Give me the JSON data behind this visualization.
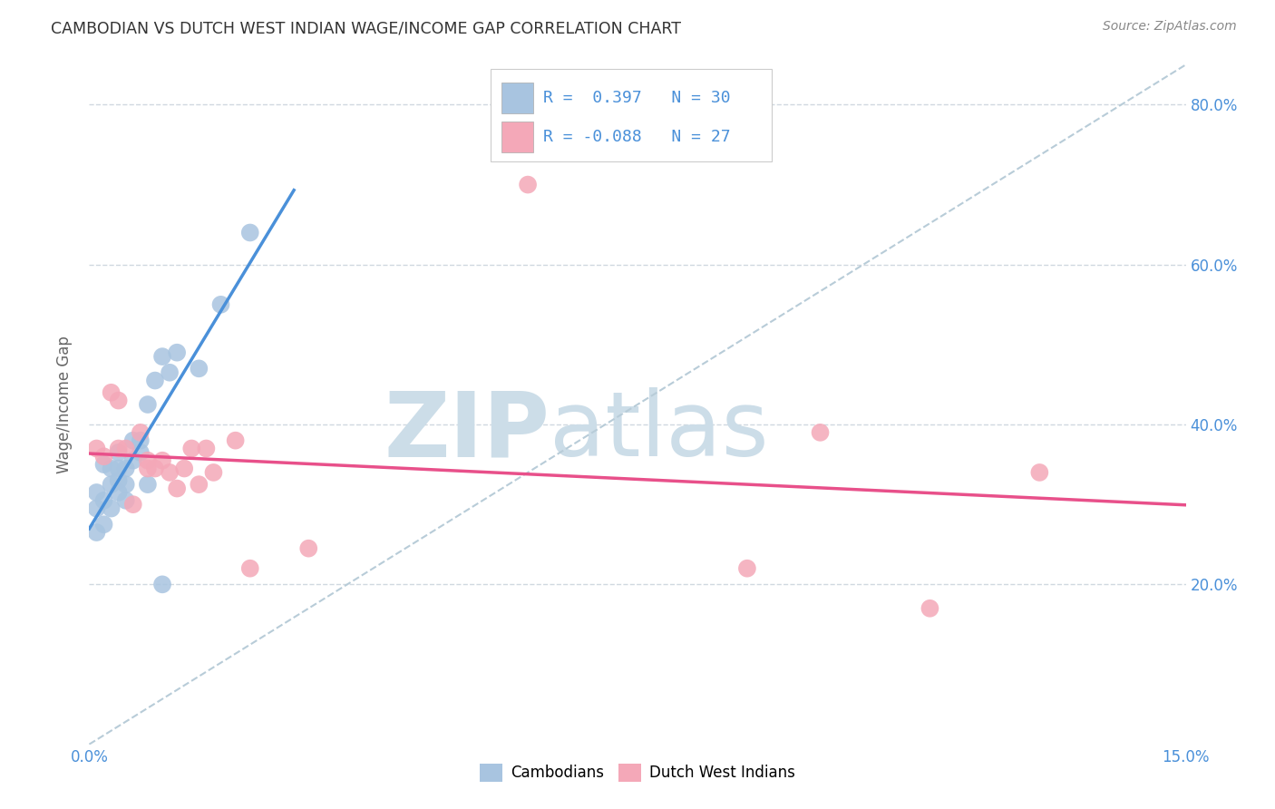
{
  "title": "CAMBODIAN VS DUTCH WEST INDIAN WAGE/INCOME GAP CORRELATION CHART",
  "source": "Source: ZipAtlas.com",
  "ylabel": "Wage/Income Gap",
  "xmin": 0.0,
  "xmax": 0.15,
  "ymin": 0.0,
  "ymax": 0.85,
  "yticks": [
    0.2,
    0.4,
    0.6,
    0.8
  ],
  "ytick_labels": [
    "20.0%",
    "40.0%",
    "60.0%",
    "80.0%"
  ],
  "xtick_vals": [
    0.0,
    0.03,
    0.06,
    0.09,
    0.12,
    0.15
  ],
  "xtick_show": [
    "0.0%",
    "",
    "",
    "",
    "",
    "15.0%"
  ],
  "cambodian_R": 0.397,
  "cambodian_N": 30,
  "dutch_R": -0.088,
  "dutch_N": 27,
  "cambodian_color": "#a8c4e0",
  "dutch_color": "#f4a8b8",
  "cambodian_line_color": "#4a90d9",
  "dutch_line_color": "#e8508a",
  "dashed_line_color": "#b8ccd8",
  "legend_text_color": "#4a90d9",
  "background_color": "#ffffff",
  "grid_color": "#d0d8e0",
  "cambodian_x": [
    0.001,
    0.001,
    0.001,
    0.002,
    0.002,
    0.002,
    0.003,
    0.003,
    0.003,
    0.004,
    0.004,
    0.004,
    0.004,
    0.005,
    0.005,
    0.005,
    0.006,
    0.006,
    0.007,
    0.007,
    0.008,
    0.008,
    0.009,
    0.01,
    0.01,
    0.011,
    0.012,
    0.015,
    0.018,
    0.022
  ],
  "cambodian_y": [
    0.265,
    0.295,
    0.315,
    0.275,
    0.305,
    0.35,
    0.295,
    0.325,
    0.345,
    0.315,
    0.33,
    0.345,
    0.365,
    0.305,
    0.325,
    0.345,
    0.355,
    0.38,
    0.365,
    0.38,
    0.325,
    0.425,
    0.455,
    0.2,
    0.485,
    0.465,
    0.49,
    0.47,
    0.55,
    0.64
  ],
  "dutch_x": [
    0.001,
    0.002,
    0.003,
    0.004,
    0.004,
    0.005,
    0.006,
    0.007,
    0.008,
    0.008,
    0.009,
    0.01,
    0.011,
    0.012,
    0.013,
    0.014,
    0.015,
    0.016,
    0.017,
    0.02,
    0.022,
    0.03,
    0.06,
    0.09,
    0.1,
    0.115,
    0.13
  ],
  "dutch_y": [
    0.37,
    0.36,
    0.44,
    0.37,
    0.43,
    0.37,
    0.3,
    0.39,
    0.345,
    0.355,
    0.345,
    0.355,
    0.34,
    0.32,
    0.345,
    0.37,
    0.325,
    0.37,
    0.34,
    0.38,
    0.22,
    0.245,
    0.7,
    0.22,
    0.39,
    0.17,
    0.34
  ],
  "watermark_zip": "ZIP",
  "watermark_atlas": "atlas",
  "watermark_color": "#ccdde8",
  "cam_line_x0": 0.0,
  "cam_line_x1": 0.028,
  "dutch_line_x0": 0.0,
  "dutch_line_x1": 0.15
}
